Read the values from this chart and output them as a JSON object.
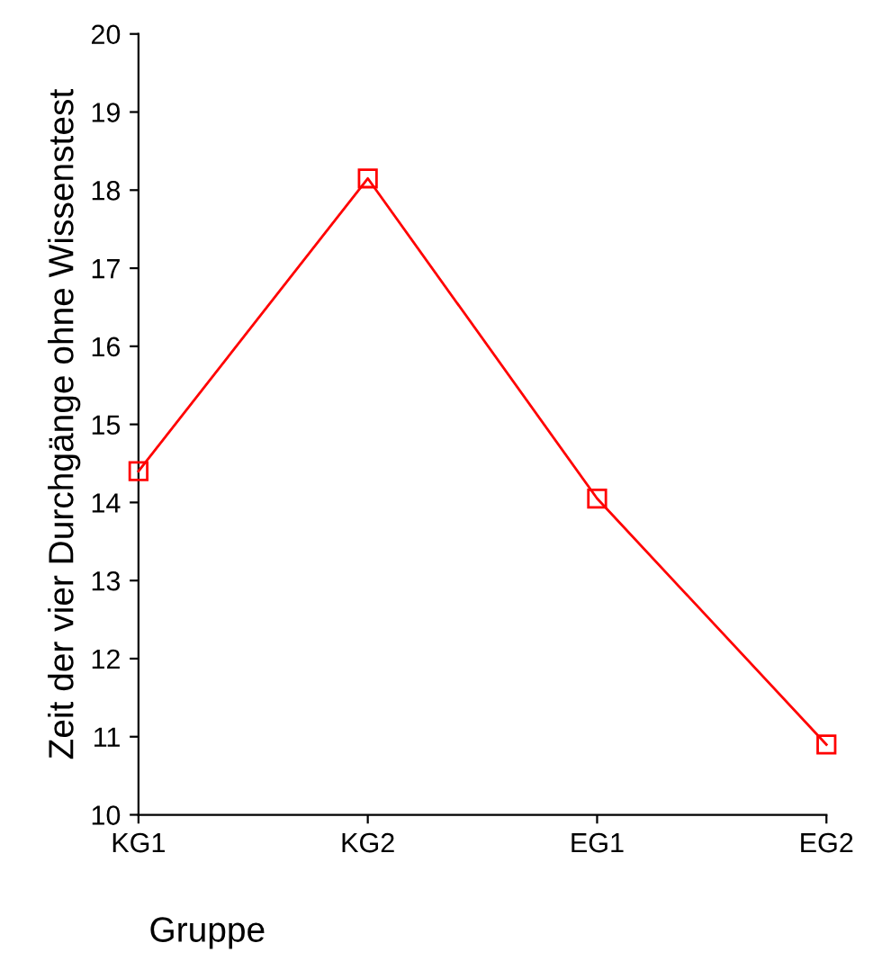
{
  "chart_data": {
    "type": "line",
    "xlabel": "Gruppe",
    "ylabel": "Zeit der vier Durchgänge ohne Wissenstest",
    "categories": [
      "KG1",
      "KG2",
      "EG1",
      "EG2"
    ],
    "series": [
      {
        "color": "#ff0000",
        "values": [
          14.4,
          18.15,
          14.05,
          10.9
        ]
      }
    ],
    "ylim": [
      10,
      20
    ],
    "yticks": [
      10,
      11,
      12,
      13,
      14,
      15,
      16,
      17,
      18,
      19,
      20
    ],
    "marker": "square",
    "line_style": "solid",
    "grid": false
  }
}
